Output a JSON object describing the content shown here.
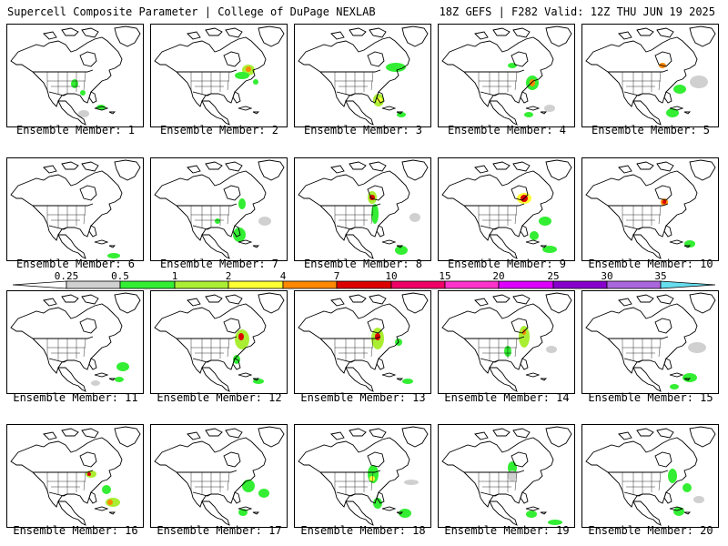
{
  "header": {
    "title": "Supercell Composite Parameter | College of DuPage NEXLAB",
    "run_info": "18Z GEFS | F282 Valid: 12Z THU JUN 19 2025"
  },
  "colorbar": {
    "ticks": [
      "0.25",
      "0.5",
      "1",
      "2",
      "4",
      "7",
      "10",
      "15",
      "20",
      "25",
      "30",
      "35"
    ],
    "colors": [
      "#ffffff",
      "#d0d0d0",
      "#33ee33",
      "#aaee33",
      "#ffff33",
      "#ff8800",
      "#dd0000",
      "#ee0066",
      "#ff33cc",
      "#dd00ff",
      "#8800cc",
      "#aa66dd",
      "#66ddee"
    ]
  },
  "members": [
    {
      "label": "Ensemble Member: 1"
    },
    {
      "label": "Ensemble Member: 2"
    },
    {
      "label": "Ensemble Member: 3"
    },
    {
      "label": "Ensemble Member: 4"
    },
    {
      "label": "Ensemble Member: 5"
    },
    {
      "label": "Ensemble Member: 6"
    },
    {
      "label": "Ensemble Member: 7"
    },
    {
      "label": "Ensemble Member: 8"
    },
    {
      "label": "Ensemble Member: 9"
    },
    {
      "label": "Ensemble Member: 10"
    },
    {
      "label": "Ensemble Member: 11"
    },
    {
      "label": "Ensemble Member: 12"
    },
    {
      "label": "Ensemble Member: 13"
    },
    {
      "label": "Ensemble Member: 14"
    },
    {
      "label": "Ensemble Member: 15"
    },
    {
      "label": "Ensemble Member: 16"
    },
    {
      "label": "Ensemble Member: 17"
    },
    {
      "label": "Ensemble Member: 18"
    },
    {
      "label": "Ensemble Member: 19"
    },
    {
      "label": "Ensemble Member: 20"
    }
  ]
}
